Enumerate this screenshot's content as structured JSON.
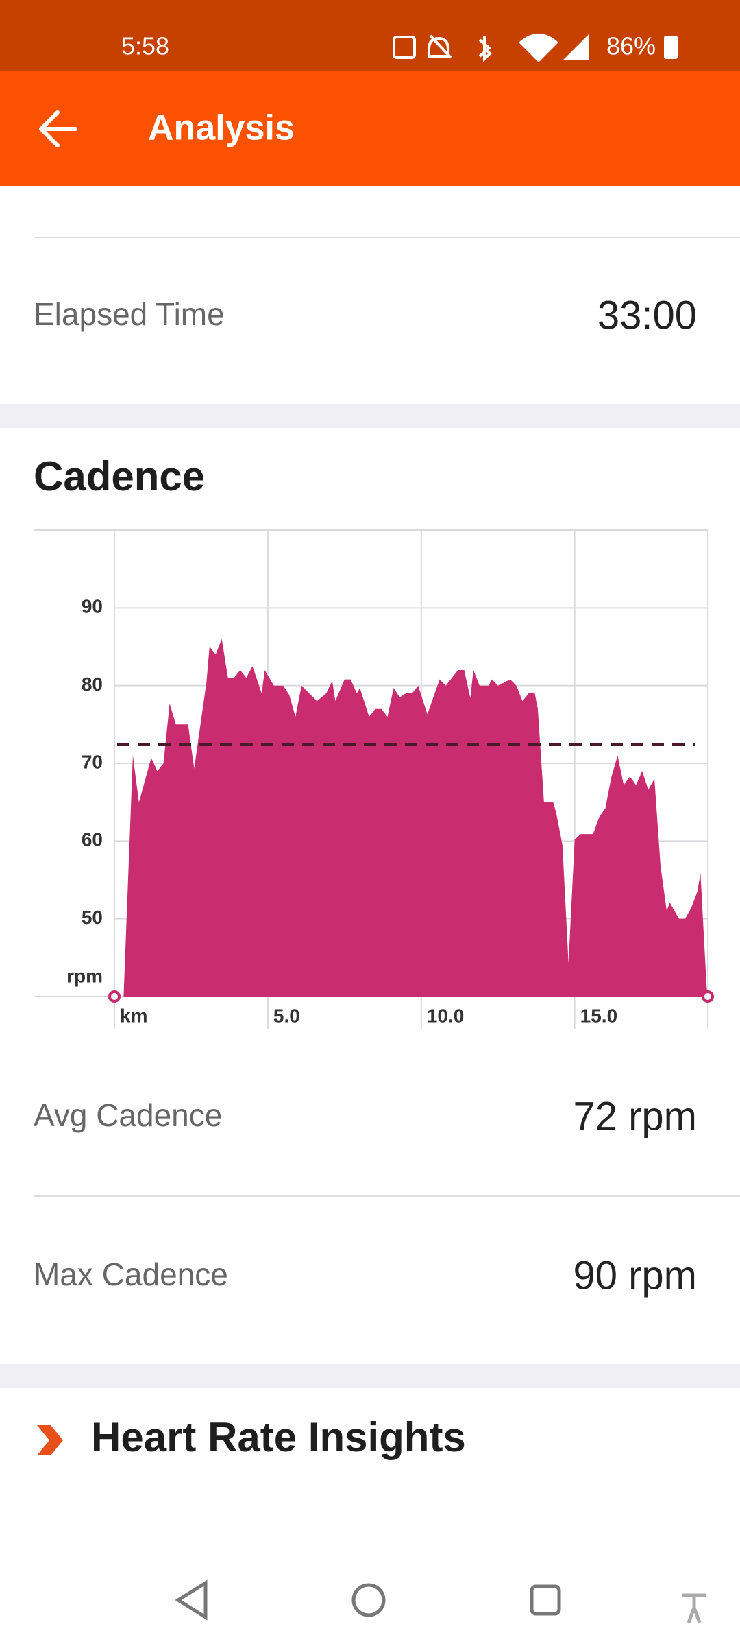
{
  "status_bar": {
    "time": "5:58",
    "battery": "86%"
  },
  "app_bar": {
    "title": "Analysis"
  },
  "elapsed": {
    "label": "Elapsed Time",
    "value": "33:00"
  },
  "chart_data": {
    "type": "area",
    "title": "Cadence",
    "color": "#c8296c",
    "average": 72.4,
    "average_color": "#4a1a2a",
    "xlim": [
      0,
      19.34
    ],
    "ylim": [
      40,
      100
    ],
    "grid": true,
    "xticks": [
      {
        "value": 0,
        "label": "km"
      },
      {
        "value": 5,
        "label": "5.0"
      },
      {
        "value": 10,
        "label": "10.0"
      },
      {
        "value": 15,
        "label": "15.0"
      }
    ],
    "yticks": [
      {
        "value": 40,
        "label": "rpm"
      },
      50,
      60,
      70,
      80,
      90
    ],
    "x": [
      0,
      0.3,
      0.6,
      0.8,
      1.2,
      1.4,
      1.6,
      1.8,
      2.0,
      2.4,
      2.6,
      3.0,
      3.1,
      3.3,
      3.5,
      3.7,
      3.9,
      4.1,
      4.3,
      4.5,
      4.8,
      4.9,
      5.2,
      5.5,
      5.7,
      5.9,
      6.1,
      6.4,
      6.6,
      6.9,
      7.1,
      7.2,
      7.5,
      7.7,
      7.9,
      8.0,
      8.3,
      8.5,
      8.7,
      8.9,
      9.1,
      9.3,
      9.5,
      9.7,
      9.9,
      10.2,
      10.6,
      10.8,
      11.0,
      11.2,
      11.4,
      11.6,
      11.7,
      11.9,
      12.2,
      12.3,
      12.5,
      12.9,
      13.1,
      13.3,
      13.5,
      13.7,
      13.8,
      14.0,
      14.3,
      14.4,
      14.6,
      14.8,
      15.0,
      15.2,
      15.6,
      15.8,
      16.0,
      16.2,
      16.4,
      16.6,
      16.8,
      17.0,
      17.2,
      17.4,
      17.6,
      17.8,
      18.0,
      18.1,
      18.4,
      18.6,
      18.8,
      19.0,
      19.1,
      19.3,
      19.34
    ],
    "values": [
      40,
      40,
      71,
      65,
      70.7,
      69,
      70,
      77.7,
      75,
      75,
      69.3,
      80.4,
      85,
      84,
      86,
      81,
      81,
      82,
      81,
      82.5,
      79,
      82,
      80,
      80,
      78.8,
      76,
      80,
      78.8,
      78,
      79,
      80.6,
      78,
      80.8,
      80.8,
      79,
      79.7,
      76,
      77,
      77,
      76,
      79.7,
      78.5,
      79,
      79,
      80,
      76.3,
      80.8,
      80,
      81,
      82,
      82,
      78.4,
      82,
      80,
      80,
      80.8,
      80,
      80.8,
      80,
      78,
      79,
      79,
      77,
      65,
      65,
      63.6,
      59.5,
      44.3,
      60.2,
      60.9,
      60.9,
      63.1,
      64.2,
      68.3,
      71,
      67.2,
      68.3,
      67.2,
      69,
      66.6,
      68,
      56.8,
      51,
      52.1,
      50,
      50,
      51.4,
      53.5,
      55.9,
      41.3,
      40
    ]
  },
  "stats": [
    {
      "label": "Avg Cadence",
      "value": "72 rpm"
    },
    {
      "label": "Max Cadence",
      "value": "90 rpm"
    }
  ],
  "insights": {
    "title": "Heart Rate Insights"
  }
}
